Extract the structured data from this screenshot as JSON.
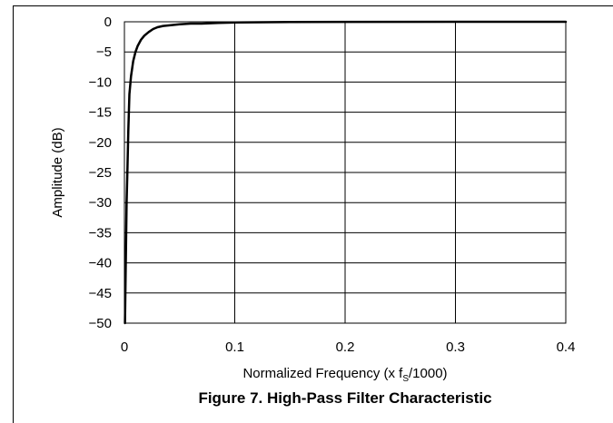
{
  "chart_data": {
    "type": "line",
    "title": "Figure 7. High-Pass Filter Characteristic",
    "xlabel_main": "Normalized Frequency (x f",
    "xlabel_sub": "S",
    "xlabel_tail": "/1000)",
    "ylabel": "Amplitude (dB)",
    "xlim": [
      0,
      0.4
    ],
    "ylim": [
      -50,
      0
    ],
    "x_ticks": [
      0,
      0.1,
      0.2,
      0.3,
      0.4
    ],
    "x_tick_labels": [
      "0",
      "0.1",
      "0.2",
      "0.3",
      "0.4"
    ],
    "y_ticks": [
      0,
      -5,
      -10,
      -15,
      -20,
      -25,
      -30,
      -35,
      -40,
      -45,
      -50
    ],
    "y_tick_labels": [
      "0",
      "−5",
      "−10",
      "−15",
      "−20",
      "−25",
      "−30",
      "−35",
      "−40",
      "−45",
      "−50"
    ],
    "grid": true,
    "series": [
      {
        "x": [
          0.0005,
          0.0012,
          0.002,
          0.0028,
          0.0035,
          0.0045,
          0.006,
          0.008,
          0.01,
          0.012,
          0.015,
          0.018,
          0.022,
          0.026,
          0.03,
          0.035,
          0.04,
          0.05,
          0.06,
          0.07,
          0.085,
          0.1,
          0.15,
          0.2,
          0.3,
          0.4
        ],
        "y": [
          -50,
          -40,
          -30,
          -24,
          -18,
          -12,
          -9,
          -6.5,
          -5,
          -4,
          -3,
          -2.3,
          -1.7,
          -1.2,
          -0.9,
          -0.7,
          -0.6,
          -0.4,
          -0.3,
          -0.3,
          -0.2,
          -0.1,
          -0.05,
          -0.02,
          0,
          0
        ]
      }
    ],
    "colors": {
      "line": "#000000",
      "grid": "#000000",
      "background": "#ffffff"
    }
  }
}
